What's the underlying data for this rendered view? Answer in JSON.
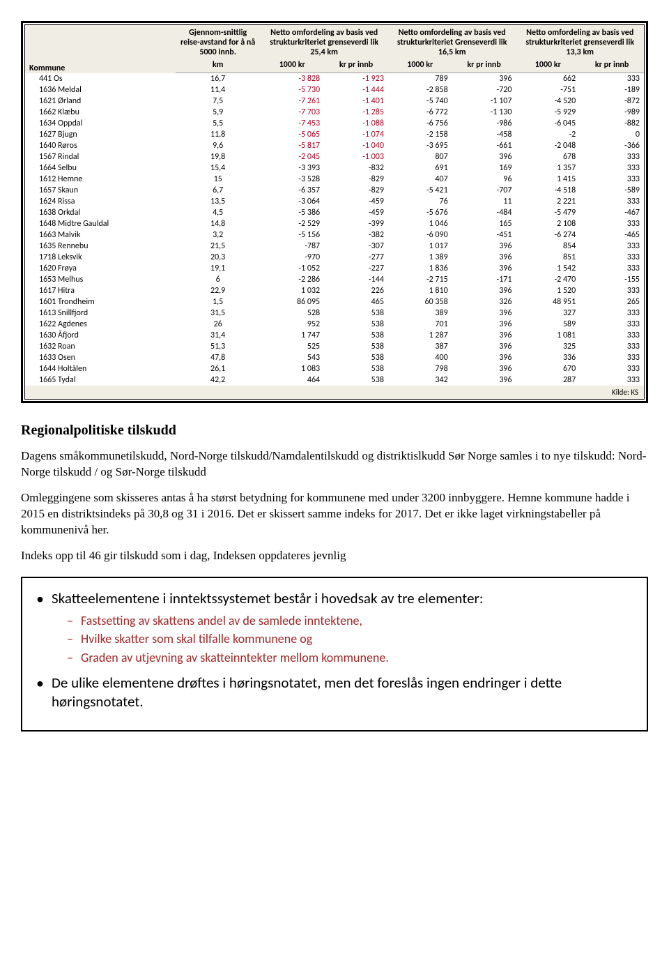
{
  "table": {
    "headers": {
      "kommune": "Kommune",
      "reise": "Gjennom-snittlig reise-avstand for å nå 5000 innb.",
      "km": "km",
      "group1": "Netto omfordeling av basis ved strukturkriteriet grenseverdi lik 25,4 km",
      "group2": "Netto omfordeling av basis ved strukturkriteriet Grenseverdi lik 16,5 km",
      "group3": "Netto omfordeling av basis ved strukturkriteriet grenseverdi lik 13,3 km",
      "kr1000": "1000 kr",
      "krinnb": "kr pr innb"
    },
    "rows": [
      {
        "k": "441 Os",
        "km": "16,7",
        "a": "-3 828",
        "ar": "1",
        "b": "-1 923",
        "br": "1",
        "c": "789",
        "d": "396",
        "e": "662",
        "f": "333"
      },
      {
        "k": "1636 Meldal",
        "km": "11,4",
        "a": "-5 730",
        "ar": "1",
        "b": "-1 444",
        "br": "1",
        "c": "-2 858",
        "d": "-720",
        "e": "-751",
        "f": "-189"
      },
      {
        "k": "1621 Ørland",
        "km": "7,5",
        "a": "-7 261",
        "ar": "1",
        "b": "-1 401",
        "br": "1",
        "c": "-5 740",
        "d": "-1 107",
        "e": "-4 520",
        "f": "-872"
      },
      {
        "k": "1662 Klæbu",
        "km": "5,9",
        "a": "-7 703",
        "ar": "1",
        "b": "-1 285",
        "br": "1",
        "c": "-6 772",
        "d": "-1 130",
        "e": "-5 929",
        "f": "-989"
      },
      {
        "k": "1634 Oppdal",
        "km": "5,5",
        "a": "-7 453",
        "ar": "1",
        "b": "-1 088",
        "br": "1",
        "c": "-6 756",
        "d": "-986",
        "e": "-6 045",
        "f": "-882"
      },
      {
        "k": "1627 Bjugn",
        "km": "11,8",
        "a": "-5 065",
        "ar": "1",
        "b": "-1 074",
        "br": "1",
        "c": "-2 158",
        "d": "-458",
        "e": "-2",
        "f": "0"
      },
      {
        "k": "1640 Røros",
        "km": "9,6",
        "a": "-5 817",
        "ar": "1",
        "b": "-1 040",
        "br": "1",
        "c": "-3 695",
        "d": "-661",
        "e": "-2 048",
        "f": "-366"
      },
      {
        "k": "1567 Rindal",
        "km": "19,8",
        "a": "-2 045",
        "ar": "1",
        "b": "-1 003",
        "br": "1",
        "c": "807",
        "d": "396",
        "e": "678",
        "f": "333"
      },
      {
        "k": "1664 Selbu",
        "km": "15,4",
        "a": "-3 393",
        "b": "-832",
        "c": "691",
        "d": "169",
        "e": "1 357",
        "f": "333"
      },
      {
        "k": "1612 Hemne",
        "km": "15",
        "a": "-3 528",
        "b": "-829",
        "c": "407",
        "d": "96",
        "e": "1 415",
        "f": "333"
      },
      {
        "k": "1657 Skaun",
        "km": "6,7",
        "a": "-6 357",
        "b": "-829",
        "c": "-5 421",
        "d": "-707",
        "e": "-4 518",
        "f": "-589"
      },
      {
        "k": "1624 Rissa",
        "km": "13,5",
        "a": "-3 064",
        "b": "-459",
        "c": "76",
        "d": "11",
        "e": "2 221",
        "f": "333"
      },
      {
        "k": "1638 Orkdal",
        "km": "4,5",
        "a": "-5 386",
        "b": "-459",
        "c": "-5 676",
        "d": "-484",
        "e": "-5 479",
        "f": "-467"
      },
      {
        "k": "1648 Midtre Gauldal",
        "km": "14,8",
        "a": "-2 529",
        "b": "-399",
        "c": "1 046",
        "d": "165",
        "e": "2 108",
        "f": "333"
      },
      {
        "k": "1663 Malvik",
        "km": "3,2",
        "a": "-5 156",
        "b": "-382",
        "c": "-6 090",
        "d": "-451",
        "e": "-6 274",
        "f": "-465"
      },
      {
        "k": "1635 Rennebu",
        "km": "21,5",
        "a": "-787",
        "b": "-307",
        "c": "1 017",
        "d": "396",
        "e": "854",
        "f": "333"
      },
      {
        "k": "1718 Leksvik",
        "km": "20,3",
        "a": "-970",
        "b": "-277",
        "c": "1 389",
        "d": "396",
        "e": "851",
        "f": "333"
      },
      {
        "k": "1620 Frøya",
        "km": "19,1",
        "a": "-1 052",
        "b": "-227",
        "c": "1 836",
        "d": "396",
        "e": "1 542",
        "f": "333"
      },
      {
        "k": "1653 Melhus",
        "km": "6",
        "a": "-2 286",
        "b": "-144",
        "c": "-2 715",
        "d": "-171",
        "e": "-2 470",
        "f": "-155"
      },
      {
        "k": "1617 Hitra",
        "km": "22,9",
        "a": "1 032",
        "b": "226",
        "c": "1 810",
        "d": "396",
        "e": "1 520",
        "f": "333"
      },
      {
        "k": "1601 Trondheim",
        "km": "1,5",
        "a": "86 095",
        "b": "465",
        "c": "60 358",
        "d": "326",
        "e": "48 951",
        "f": "265"
      },
      {
        "k": "1613 Snillfjord",
        "km": "31,5",
        "a": "528",
        "b": "538",
        "c": "389",
        "d": "396",
        "e": "327",
        "f": "333"
      },
      {
        "k": "1622 Agdenes",
        "km": "26",
        "a": "952",
        "b": "538",
        "c": "701",
        "d": "396",
        "e": "589",
        "f": "333"
      },
      {
        "k": "1630 Åfjord",
        "km": "31,4",
        "a": "1 747",
        "b": "538",
        "c": "1 287",
        "d": "396",
        "e": "1 081",
        "f": "333"
      },
      {
        "k": "1632 Roan",
        "km": "51,3",
        "a": "525",
        "b": "538",
        "c": "387",
        "d": "396",
        "e": "325",
        "f": "333"
      },
      {
        "k": "1633 Osen",
        "km": "47,8",
        "a": "543",
        "b": "538",
        "c": "400",
        "d": "396",
        "e": "336",
        "f": "333"
      },
      {
        "k": "1644 Holtålen",
        "km": "26,1",
        "a": "1 083",
        "b": "538",
        "c": "798",
        "d": "396",
        "e": "670",
        "f": "333"
      },
      {
        "k": "1665 Tydal",
        "km": "42,2",
        "a": "464",
        "b": "538",
        "c": "342",
        "d": "396",
        "e": "287",
        "f": "333"
      }
    ],
    "source": "Kilde: KS"
  },
  "doc": {
    "title": "Regionalpolitiske tilskudd",
    "p1": "Dagens småkommunetilskudd, Nord-Norge tilskudd/Namdalentilskudd og distriktislkudd Sør Norge samles i to nye tilskudd: Nord-Norge tilskudd / og Sør-Norge tilskudd",
    "p2": "Omleggingene som skisseres antas å ha størst betydning for kommunene med under 3200 innbyggere. Hemne kommune hadde i 2015 en distriktsindeks på 30,8 og 31 i 2016. Det er skissert samme indeks for 2017. Det er ikke laget virkningstabeller på kommunenivå her.",
    "p3": "Indeks opp til 46 gir tilskudd som i dag, Indeksen oppdateres jevnlig"
  },
  "box": {
    "b1": "Skatteelementene i inntektssystemet består i hovedsak av tre elementer:",
    "s1": "Fastsetting av skattens andel av de samlede inntektene,",
    "s2": "Hvilke skatter som skal tilfalle kommunene og",
    "s3": "Graden av utjevning av skatteinntekter mellom kommunene.",
    "b2": "De ulike elementene drøftes i høringsnotatet, men det foreslås ingen endringer i dette høringsnotatet."
  }
}
